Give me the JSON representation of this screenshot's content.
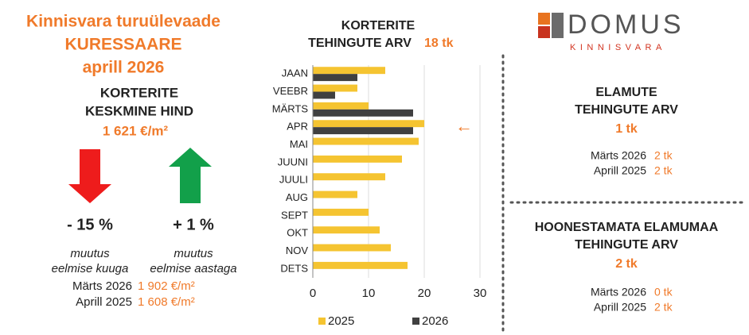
{
  "header": {
    "title": [
      "Kinnisvara turuülevaade",
      "KURESSAARE",
      "aprill 2026"
    ]
  },
  "price": {
    "title": [
      "KORTERITE",
      "KESKMINE HIND"
    ],
    "value": "1 621 €/m²",
    "changes": [
      {
        "value": "- 15 %",
        "label": [
          "muutus",
          "eelmise kuuga"
        ]
      },
      {
        "value": "+ 1 %",
        "label": [
          "muutus",
          "eelmise aastaga"
        ]
      }
    ],
    "history": [
      {
        "period": "Märts 2026",
        "value": "1 902 €/m²"
      },
      {
        "period": "Aprill 2025",
        "value": "1 608 €/m²"
      }
    ]
  },
  "logo": {
    "name": "DOMUS",
    "sub": "KINNISVARA"
  },
  "chart_data": {
    "type": "bar",
    "orientation": "horizontal",
    "title": [
      "KORTERITE",
      "TEHINGUTE ARV"
    ],
    "title_value": "18 tk",
    "annotation": "←",
    "categories": [
      "JAAN",
      "VEEBR",
      "MÄRTS",
      "APR",
      "MAI",
      "JUUNI",
      "JUULI",
      "AUG",
      "SEPT",
      "OKT",
      "NOV",
      "DETS"
    ],
    "series": [
      {
        "name": "2025",
        "color": "#f5c431",
        "values": [
          13,
          8,
          10,
          20,
          19,
          16,
          13,
          8,
          10,
          12,
          14,
          17
        ]
      },
      {
        "name": "2026",
        "color": "#404040",
        "values": [
          8,
          4,
          18,
          18,
          null,
          null,
          null,
          null,
          null,
          null,
          null,
          null
        ]
      }
    ],
    "xlim": [
      0,
      30
    ],
    "xticks": [
      0,
      10,
      20,
      30
    ],
    "grid": true,
    "legend": "bottom"
  },
  "panels": [
    {
      "title": [
        "ELAMUTE",
        "TEHINGUTE ARV"
      ],
      "value": "1 tk",
      "rows": [
        {
          "period": "Märts 2026",
          "value": "2 tk"
        },
        {
          "period": "Aprill 2025",
          "value": "2 tk"
        }
      ]
    },
    {
      "title": [
        "HOONESTAMATA ELAMUMAA",
        "TEHINGUTE ARV"
      ],
      "value": "2 tk",
      "rows": [
        {
          "period": "Märts 2026",
          "value": "0 tk"
        },
        {
          "period": "Aprill 2025",
          "value": "2 tk"
        }
      ]
    }
  ]
}
